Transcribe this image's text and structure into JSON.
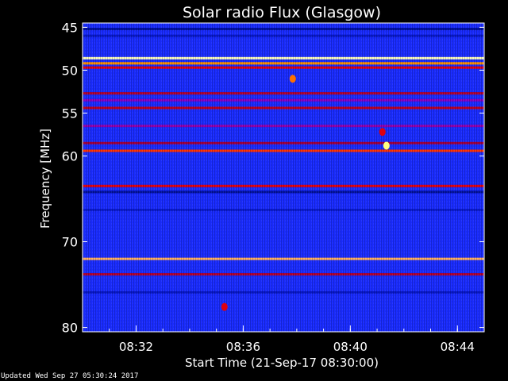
{
  "chart_data": {
    "type": "heatmap",
    "title": "Solar radio Flux (Glasgow)",
    "xlabel": "Start Time (21-Sep-17 08:30:00)",
    "ylabel": "Frequency [MHz]",
    "x_ticks": [
      "08:32",
      "08:36",
      "08:40",
      "08:44"
    ],
    "x_tick_minutes": [
      2,
      6,
      10,
      14
    ],
    "xlim_minutes": [
      0,
      15
    ],
    "y_ticks": [
      45,
      50,
      55,
      60,
      70,
      80
    ],
    "ylim_mhz": [
      44.5,
      80.5
    ],
    "background_color": "#1a2cff",
    "colormap": [
      "#000020",
      "#0010a0",
      "#2a3cff",
      "#8a00c0",
      "#e00010",
      "#ff7000",
      "#ffff80"
    ],
    "bands_mhz": [
      {
        "f": 45.2,
        "color": "#0010a0"
      },
      {
        "f": 46.0,
        "color": "#0818c8"
      },
      {
        "f": 48.6,
        "color": "#ffffc0"
      },
      {
        "f": 49.2,
        "color": "#ff9000"
      },
      {
        "f": 49.7,
        "color": "#e00010"
      },
      {
        "f": 52.7,
        "color": "#b00030"
      },
      {
        "f": 53.5,
        "color": "#8a00c0"
      },
      {
        "f": 54.4,
        "color": "#c00020"
      },
      {
        "f": 56.5,
        "color": "#9000b0"
      },
      {
        "f": 58.5,
        "color": "#a00040"
      },
      {
        "f": 59.4,
        "color": "#ff3000"
      },
      {
        "f": 63.5,
        "color": "#e00010"
      },
      {
        "f": 64.2,
        "color": "#0010a0"
      },
      {
        "f": 66.3,
        "color": "#0a1ad0"
      },
      {
        "f": 72.0,
        "color": "#ffb060"
      },
      {
        "f": 73.8,
        "color": "#b00030"
      },
      {
        "f": 75.9,
        "color": "#0818c8"
      }
    ],
    "bursts": [
      {
        "minute": 11.35,
        "mhz": 58.8,
        "color": "#ffff80"
      },
      {
        "minute": 11.2,
        "mhz": 57.2,
        "color": "#e00010"
      },
      {
        "minute": 7.85,
        "mhz": 51.0,
        "color": "#ff7000"
      },
      {
        "minute": 5.3,
        "mhz": 77.6,
        "color": "#e00010"
      }
    ]
  },
  "footer": {
    "updated": "Updated Wed Sep 27 05:30:24 2017"
  }
}
